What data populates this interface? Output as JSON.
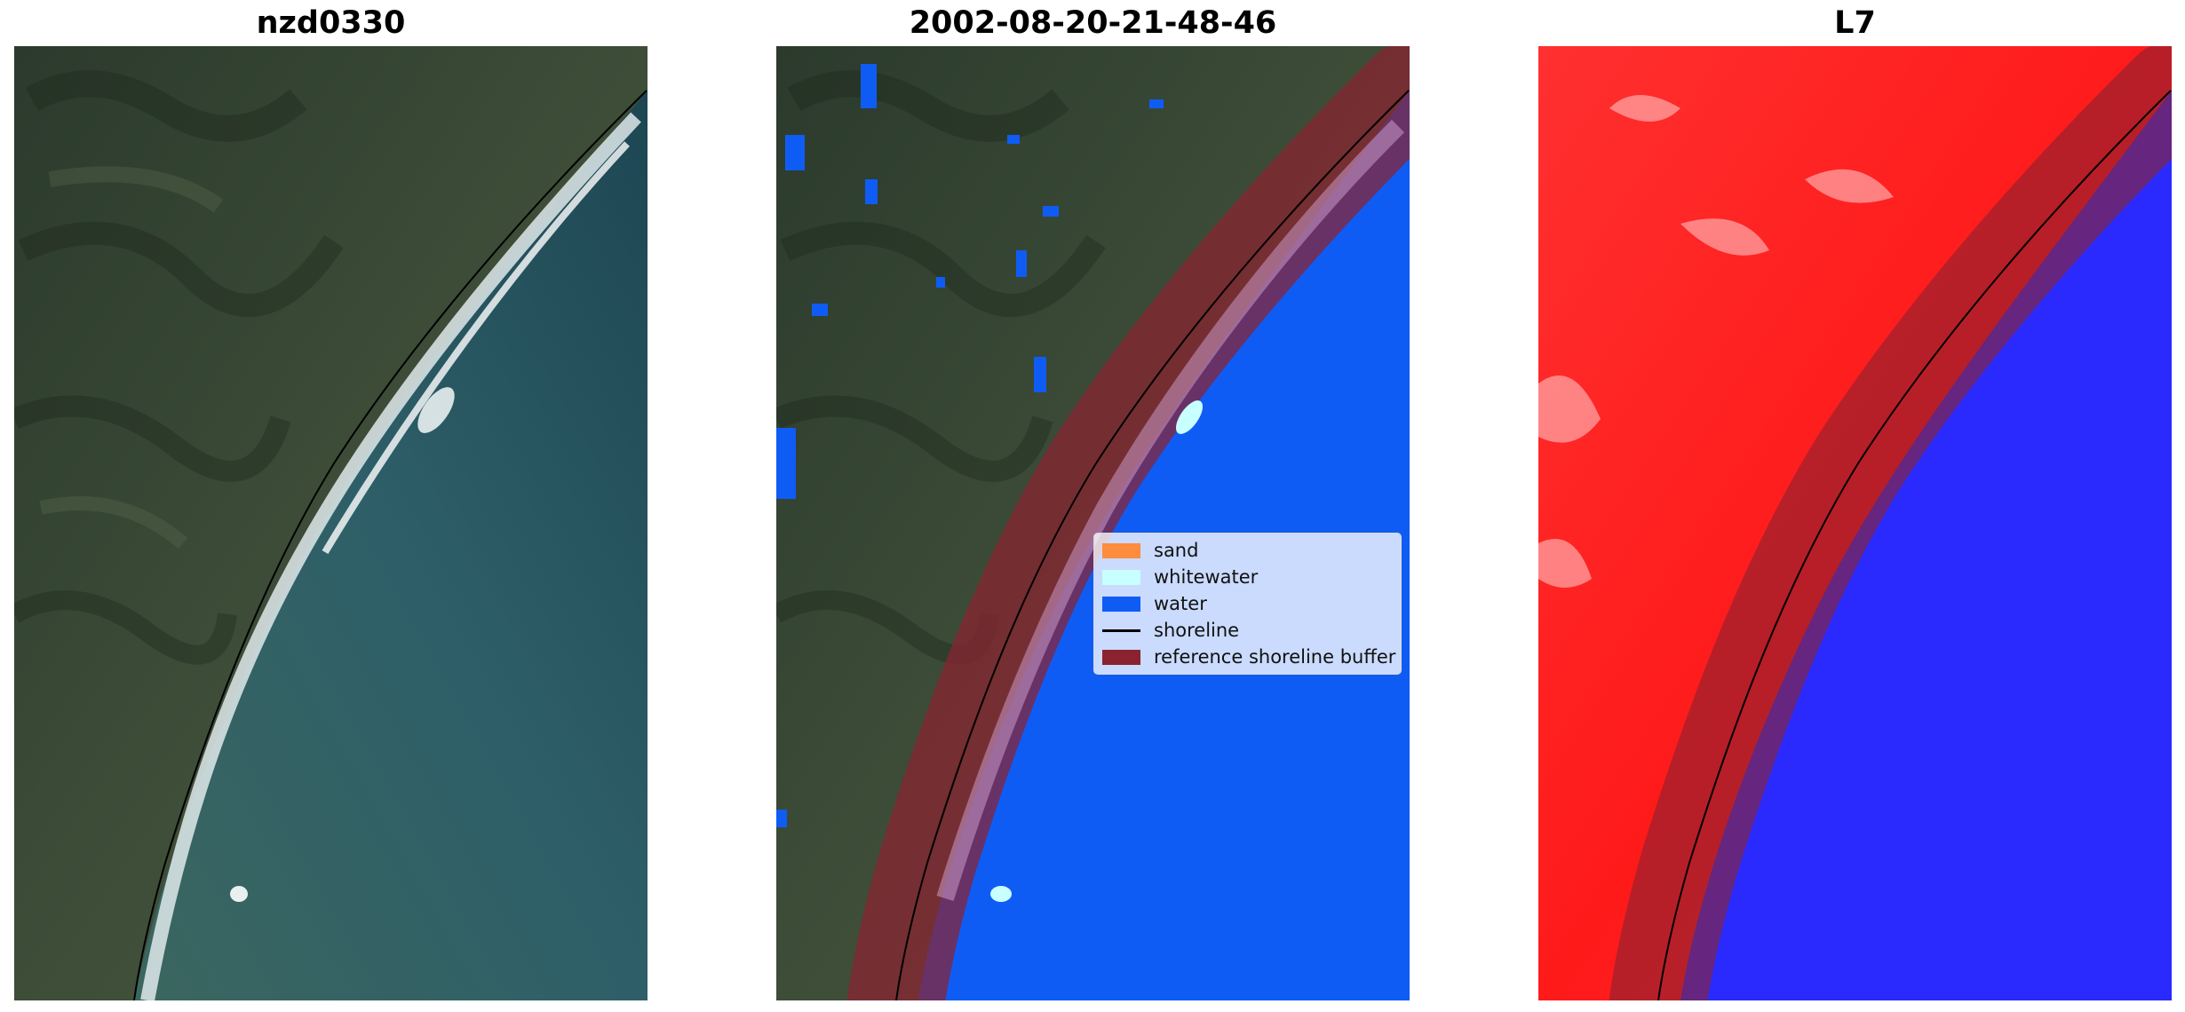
{
  "panels": [
    {
      "title": "nzd0330"
    },
    {
      "title": "2002-08-20-21-48-46"
    },
    {
      "title": "L7"
    }
  ],
  "legend": {
    "items": [
      {
        "label": "sand",
        "color": "#ff8c3f",
        "kind": "patch"
      },
      {
        "label": "whitewater",
        "color": "#c8ffff",
        "kind": "patch"
      },
      {
        "label": "water",
        "color": "#0f5cf5",
        "kind": "patch"
      },
      {
        "label": "shoreline",
        "color": "#000000",
        "kind": "line"
      },
      {
        "label": "reference shoreline buffer",
        "color": "#8b2230",
        "kind": "patch"
      }
    ]
  },
  "colors": {
    "land": "#3a4a33",
    "sea": "#2a5560",
    "water_class": "#0f5cf5",
    "buffer": "#8b2230",
    "index_land": "#ff1a1a",
    "index_water": "#2a2aff"
  }
}
